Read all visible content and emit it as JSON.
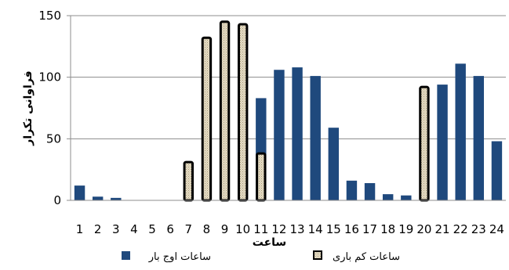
{
  "chart_data": {
    "type": "bar",
    "xlabel": "ساعت",
    "ylabel": "فراوانی تکرار",
    "ylim": [
      0,
      150
    ],
    "yticks": [
      0,
      50,
      100,
      150
    ],
    "grid": "horizontal",
    "legend_position": "bottom",
    "categories": [
      "1",
      "2",
      "3",
      "4",
      "5",
      "6",
      "7",
      "8",
      "9",
      "10",
      "11",
      "12",
      "13",
      "14",
      "15",
      "16",
      "17",
      "18",
      "19",
      "20",
      "21",
      "22",
      "23",
      "24"
    ],
    "series": [
      {
        "name": "ساعات اوج بار",
        "color": "#1F497D",
        "values": [
          12,
          3,
          2,
          0,
          0,
          0,
          0,
          0,
          0,
          0,
          83,
          106,
          108,
          101,
          59,
          16,
          14,
          5,
          4,
          0,
          94,
          111,
          101,
          48
        ]
      },
      {
        "name": "ساعات کم باری",
        "color": "#DDD3BA",
        "values": [
          0,
          0,
          0,
          0,
          0,
          0,
          32,
          133,
          146,
          144,
          39,
          0,
          0,
          0,
          0,
          0,
          0,
          0,
          0,
          93,
          0,
          0,
          0,
          0
        ]
      }
    ]
  }
}
